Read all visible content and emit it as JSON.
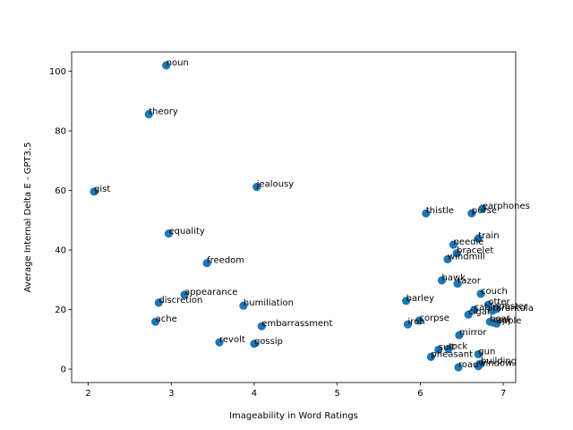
{
  "chart_data": {
    "type": "scatter",
    "title": "",
    "xlabel": "Imageability in Word Ratings",
    "ylabel": "Average Internal Delta E - GPT3.5",
    "xlim": [
      1.8,
      7.15
    ],
    "ylim": [
      -4.5,
      106.5
    ],
    "xticks": [
      2,
      3,
      4,
      5,
      6,
      7
    ],
    "yticks": [
      0,
      20,
      40,
      60,
      80,
      100
    ],
    "grid": false,
    "legend": "none",
    "color": "#1f77b4",
    "points": [
      {
        "label": "noun",
        "x": 2.94,
        "y": 102.0
      },
      {
        "label": "theory",
        "x": 2.73,
        "y": 85.6
      },
      {
        "label": "gist",
        "x": 2.07,
        "y": 59.6
      },
      {
        "label": "jealousy",
        "x": 4.03,
        "y": 61.2
      },
      {
        "label": "equality",
        "x": 2.97,
        "y": 45.5
      },
      {
        "label": "freedom",
        "x": 3.43,
        "y": 35.6
      },
      {
        "label": "appearance",
        "x": 3.16,
        "y": 25.0
      },
      {
        "label": "discretion",
        "x": 2.85,
        "y": 22.3
      },
      {
        "label": "humiliation",
        "x": 3.87,
        "y": 21.3
      },
      {
        "label": "ache",
        "x": 2.81,
        "y": 15.9
      },
      {
        "label": "embarrassment",
        "x": 4.09,
        "y": 14.4
      },
      {
        "label": "revolt",
        "x": 3.58,
        "y": 9.0
      },
      {
        "label": "gossip",
        "x": 4.0,
        "y": 8.5
      },
      {
        "label": "thistle",
        "x": 6.07,
        "y": 52.3
      },
      {
        "label": "purse",
        "x": 6.62,
        "y": 52.3
      },
      {
        "label": "earphones",
        "x": 6.75,
        "y": 53.9
      },
      {
        "label": "train",
        "x": 6.7,
        "y": 43.9
      },
      {
        "label": "needle",
        "x": 6.4,
        "y": 41.8
      },
      {
        "label": "bracelet",
        "x": 6.44,
        "y": 38.9
      },
      {
        "label": "windmill",
        "x": 6.33,
        "y": 36.9
      },
      {
        "label": "hawk",
        "x": 6.26,
        "y": 29.8
      },
      {
        "label": "razor",
        "x": 6.45,
        "y": 28.7
      },
      {
        "label": "couch",
        "x": 6.73,
        "y": 25.3
      },
      {
        "label": "barley",
        "x": 5.83,
        "y": 22.9
      },
      {
        "label": "otter",
        "x": 6.82,
        "y": 21.6
      },
      {
        "label": "lobster",
        "x": 6.92,
        "y": 20.2
      },
      {
        "label": "cabin",
        "x": 6.65,
        "y": 19.9
      },
      {
        "label": "tarantula",
        "x": 6.87,
        "y": 19.6
      },
      {
        "label": "cigar",
        "x": 6.58,
        "y": 18.3
      },
      {
        "label": "corpse",
        "x": 5.99,
        "y": 16.3
      },
      {
        "label": "iron",
        "x": 5.85,
        "y": 15.0
      },
      {
        "label": "boat",
        "x": 6.84,
        "y": 15.9
      },
      {
        "label": "cow",
        "x": 6.88,
        "y": 15.6
      },
      {
        "label": "apple",
        "x": 6.92,
        "y": 15.3
      },
      {
        "label": "mirror",
        "x": 6.47,
        "y": 11.4
      },
      {
        "label": "suit",
        "x": 6.22,
        "y": 6.5
      },
      {
        "label": "rock",
        "x": 6.34,
        "y": 6.8
      },
      {
        "label": "pheasant",
        "x": 6.13,
        "y": 4.1
      },
      {
        "label": "gun",
        "x": 6.7,
        "y": 5.0
      },
      {
        "label": "building",
        "x": 6.73,
        "y": 1.8
      },
      {
        "label": "window",
        "x": 6.7,
        "y": 1.0
      },
      {
        "label": "road",
        "x": 6.46,
        "y": 0.6
      }
    ]
  }
}
